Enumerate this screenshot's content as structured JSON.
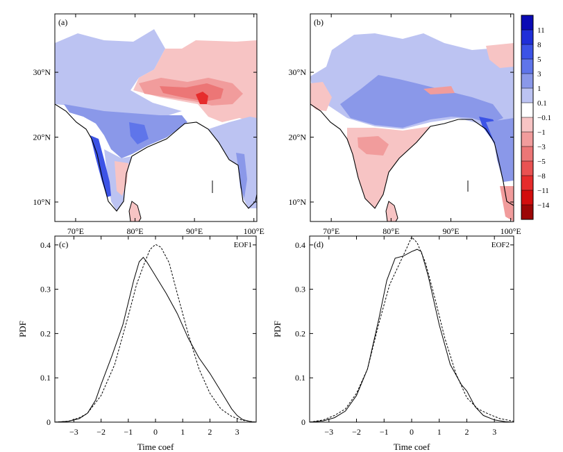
{
  "maps": [
    {
      "panel_label": "(a)"
    },
    {
      "panel_label": "(b)"
    }
  ],
  "map_axes": {
    "lon_ticks": [
      "70°E",
      "80°E",
      "90°E",
      "100°E"
    ],
    "lat_ticks": [
      "10°N",
      "20°N",
      "30°N"
    ],
    "lon_range": [
      66.5,
      100.5
    ],
    "lat_range": [
      7,
      39
    ]
  },
  "colorbar": {
    "labels": [
      "11",
      "8",
      "5",
      "3",
      "1",
      "0.1",
      "−0.1",
      "−1",
      "−3",
      "−5",
      "−8",
      "−11",
      "−14"
    ],
    "colors": [
      "#0a0ab4",
      "#1f2fd8",
      "#3c53e6",
      "#5f75ea",
      "#8a98e9",
      "#bcc3f2",
      "#ffffff",
      "#f7c4c4",
      "#f19c9c",
      "#ec7676",
      "#e95252",
      "#e62c2c",
      "#d20d0d",
      "#9c0606"
    ]
  },
  "colors": {
    "ocean": "#ffffff",
    "coast": "#000000",
    "solid_line": "#000000",
    "dashed_line": "#000000"
  },
  "chart_data": [
    {
      "type": "line",
      "panel_label": "(c)",
      "title": "EOF1",
      "xlabel": "Time coef",
      "ylabel": "PDF",
      "xlim": [
        -3.7,
        3.7
      ],
      "ylim": [
        0,
        0.42
      ],
      "xticks": [
        -3,
        -2,
        -1,
        0,
        1,
        2,
        3
      ],
      "yticks": [
        0,
        0.1,
        0.2,
        0.3,
        0.4
      ],
      "series": [
        {
          "style": "solid",
          "x": [
            -3.7,
            -3.2,
            -2.8,
            -2.5,
            -2.2,
            -2.0,
            -1.6,
            -1.2,
            -1.0,
            -0.8,
            -0.6,
            -0.45,
            -0.3,
            -0.1,
            0.1,
            0.4,
            0.8,
            1.2,
            1.6,
            2.0,
            2.4,
            2.8,
            3.0,
            3.2,
            3.5,
            3.7
          ],
          "y": [
            0.0,
            0.002,
            0.008,
            0.02,
            0.05,
            0.085,
            0.15,
            0.22,
            0.27,
            0.32,
            0.362,
            0.372,
            0.36,
            0.34,
            0.32,
            0.29,
            0.245,
            0.19,
            0.145,
            0.11,
            0.07,
            0.03,
            0.015,
            0.006,
            0.001,
            0.0
          ]
        },
        {
          "style": "dashed",
          "x": [
            -3.7,
            -3.2,
            -2.8,
            -2.5,
            -2.0,
            -1.5,
            -1.0,
            -0.7,
            -0.4,
            -0.2,
            0.0,
            0.2,
            0.5,
            0.8,
            1.2,
            1.6,
            2.0,
            2.4,
            2.8,
            3.2,
            3.7
          ],
          "y": [
            0.0,
            0.002,
            0.01,
            0.02,
            0.06,
            0.13,
            0.24,
            0.31,
            0.36,
            0.39,
            0.401,
            0.395,
            0.36,
            0.29,
            0.2,
            0.12,
            0.065,
            0.03,
            0.013,
            0.004,
            0.0
          ]
        }
      ]
    },
    {
      "type": "line",
      "panel_label": "(d)",
      "title": "EOF2",
      "xlabel": "Time coef",
      "ylabel": "PDF",
      "xlim": [
        -3.7,
        3.7
      ],
      "ylim": [
        0,
        0.42
      ],
      "xticks": [
        -3,
        -2,
        -1,
        0,
        1,
        2,
        3
      ],
      "yticks": [
        0,
        0.1,
        0.2,
        0.3,
        0.4
      ],
      "series": [
        {
          "style": "solid",
          "x": [
            -3.7,
            -3.2,
            -2.8,
            -2.4,
            -2.0,
            -1.6,
            -1.2,
            -0.9,
            -0.6,
            -0.3,
            0.0,
            0.2,
            0.35,
            0.6,
            1.0,
            1.4,
            1.8,
            2.0,
            2.3,
            2.6,
            3.0,
            3.4,
            3.7
          ],
          "y": [
            0.0,
            0.003,
            0.01,
            0.025,
            0.06,
            0.12,
            0.23,
            0.32,
            0.37,
            0.375,
            0.385,
            0.39,
            0.385,
            0.33,
            0.22,
            0.13,
            0.085,
            0.07,
            0.035,
            0.015,
            0.005,
            0.001,
            0.0
          ]
        },
        {
          "style": "dashed",
          "x": [
            -3.7,
            -3.2,
            -2.8,
            -2.4,
            -2.0,
            -1.6,
            -1.2,
            -0.8,
            -0.5,
            -0.2,
            0.0,
            0.2,
            0.5,
            0.8,
            1.2,
            1.6,
            2.0,
            2.4,
            2.8,
            3.2,
            3.7
          ],
          "y": [
            0.0,
            0.005,
            0.015,
            0.03,
            0.065,
            0.12,
            0.22,
            0.31,
            0.35,
            0.39,
            0.418,
            0.405,
            0.36,
            0.29,
            0.19,
            0.11,
            0.055,
            0.03,
            0.018,
            0.008,
            0.002
          ]
        }
      ]
    }
  ]
}
